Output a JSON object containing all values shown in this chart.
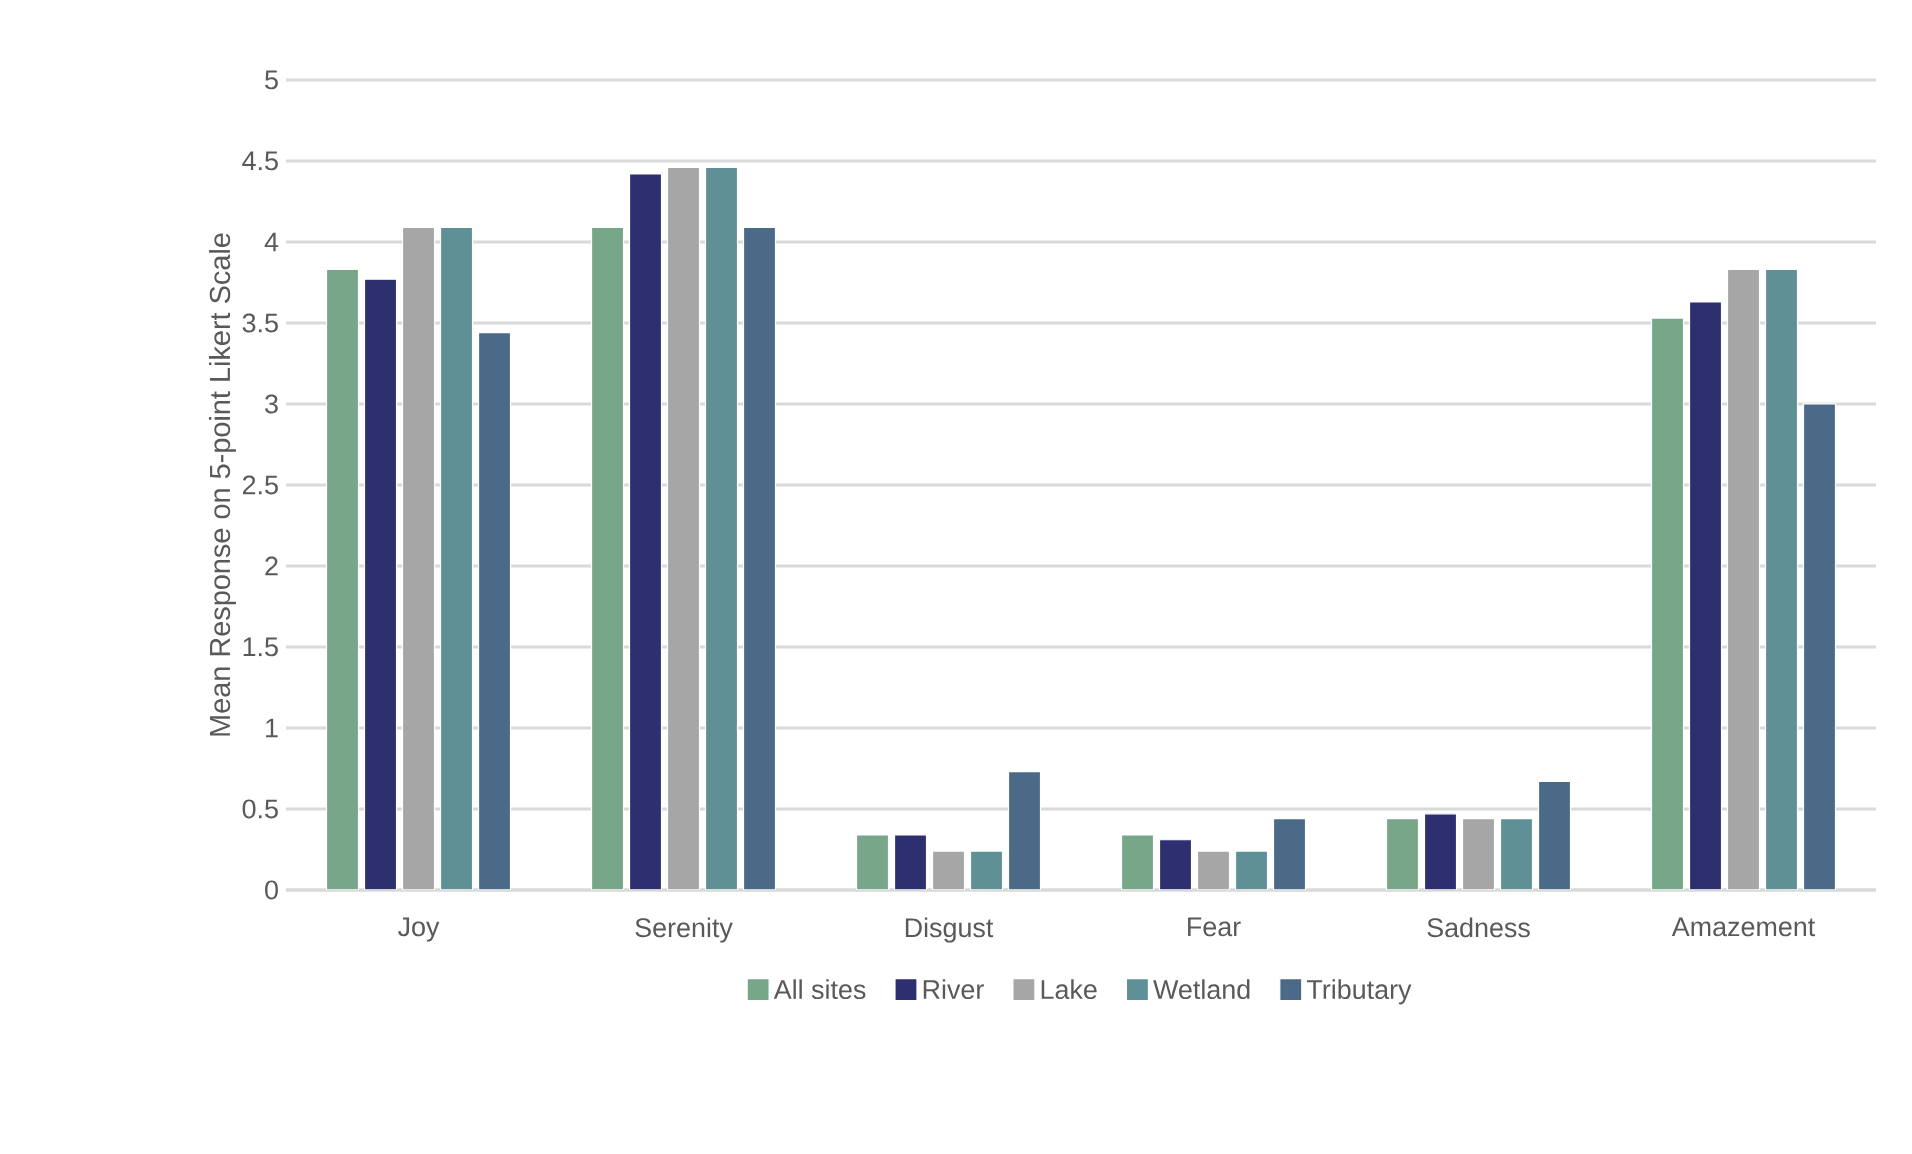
{
  "chart_data": {
    "type": "bar",
    "ylabel": "Mean Response on 5-point Likert Scale",
    "categories": [
      "Joy",
      "Serenity",
      "Disgust",
      "Fear",
      "Sadness",
      "Amazement"
    ],
    "series": [
      {
        "name": "All sites",
        "color": "#78a688",
        "values": [
          3.83,
          4.09,
          0.34,
          0.34,
          0.44,
          3.53
        ]
      },
      {
        "name": "River",
        "color": "#2d2f6e",
        "values": [
          3.77,
          4.42,
          0.34,
          0.31,
          0.47,
          3.63
        ]
      },
      {
        "name": "Lake",
        "color": "#a6a6a6",
        "values": [
          4.09,
          4.46,
          0.24,
          0.24,
          0.44,
          3.83
        ]
      },
      {
        "name": "Wetland",
        "color": "#5f9096",
        "values": [
          4.09,
          4.46,
          0.24,
          0.24,
          0.44,
          3.83
        ]
      },
      {
        "name": "Tributary",
        "color": "#4a6a88",
        "values": [
          3.44,
          4.09,
          0.73,
          0.44,
          0.67,
          3.0
        ]
      }
    ],
    "ylim": [
      0,
      5
    ],
    "yticks": [
      0,
      0.5,
      1,
      1.5,
      2,
      2.5,
      3,
      3.5,
      4,
      4.5,
      5
    ],
    "grid": "y",
    "legend": "bottom"
  }
}
